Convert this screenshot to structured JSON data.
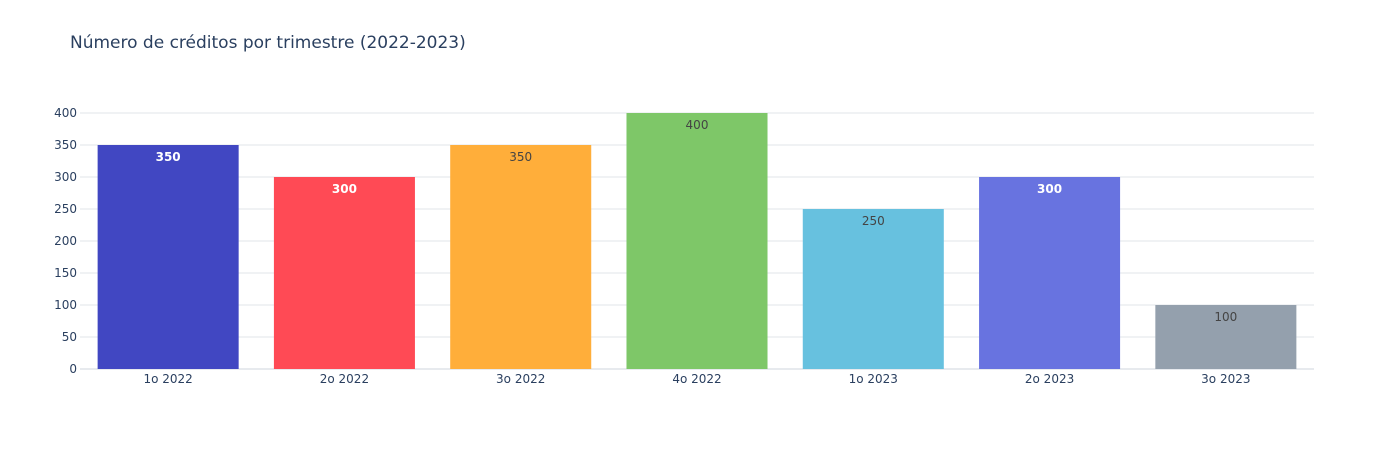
{
  "chart_data": {
    "type": "bar",
    "title": "Número de créditos por trimestre (2022-2023)",
    "xlabel": "",
    "ylabel": "",
    "categories": [
      "1o 2022",
      "2o 2022",
      "3o 2022",
      "4o 2022",
      "1o 2023",
      "2o 2023",
      "3o 2023"
    ],
    "values": [
      350,
      300,
      350,
      400,
      250,
      300,
      100
    ],
    "bar_colors": [
      "#4147c2",
      "#ff4a55",
      "#ffae3a",
      "#7ec768",
      "#67c1df",
      "#6873e0",
      "#94a0ad"
    ],
    "label_colors": [
      "#ffffff",
      "#ffffff",
      "#444444",
      "#444444",
      "#444444",
      "#ffffff",
      "#444444"
    ],
    "label_bold": [
      true,
      true,
      false,
      false,
      false,
      true,
      false
    ],
    "ylim": [
      0,
      400
    ],
    "yticks": [
      0,
      50,
      100,
      150,
      200,
      250,
      300,
      350,
      400
    ],
    "grid": true,
    "legend": "none"
  }
}
